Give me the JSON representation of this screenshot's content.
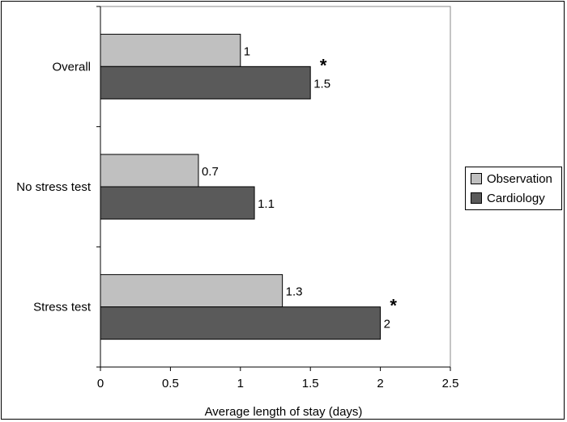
{
  "chart_data": {
    "type": "bar",
    "orientation": "horizontal",
    "categories": [
      "Overall",
      "No stress test",
      "Stress test"
    ],
    "series": [
      {
        "name": "Observation",
        "values": [
          1,
          0.7,
          1.3
        ],
        "color": "#c0c0c0"
      },
      {
        "name": "Cardiology",
        "values": [
          1.5,
          1.1,
          2
        ],
        "color": "#5a5a5a"
      }
    ],
    "data_labels": [
      [
        "1",
        "0.7",
        "1.3"
      ],
      [
        "1.5",
        "1.1",
        "2"
      ]
    ],
    "significance_marks": [
      {
        "category": "Overall",
        "series": "Cardiology",
        "text": "*"
      },
      {
        "category": "Stress test",
        "series": "Cardiology",
        "text": "*"
      }
    ],
    "xlabel": "Average length of stay (days)",
    "ylabel": "",
    "xlim": [
      0,
      2.5
    ],
    "xticks": [
      "0",
      "0.5",
      "1",
      "1.5",
      "2",
      "2.5"
    ],
    "grid": false,
    "legend_position": "right"
  }
}
